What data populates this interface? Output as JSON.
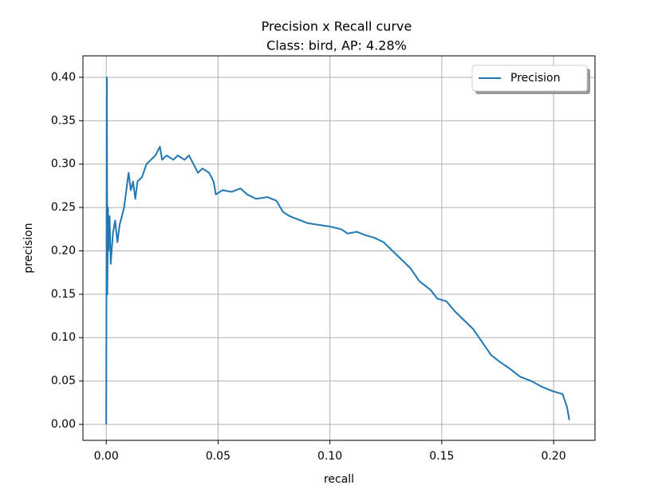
{
  "chart_data": {
    "type": "line",
    "title": "Precision x Recall curve",
    "subtitle": "Class: bird, AP: 4.28%",
    "x_label": "recall",
    "y_label": "precision",
    "grid": true,
    "legend": "upper right",
    "xlim": [
      -0.0104,
      0.2185
    ],
    "ylim": [
      -0.0184,
      0.4248
    ],
    "xticks": [
      {
        "value": 0,
        "label": "0.00"
      },
      {
        "value": 0.05,
        "label": "0.05"
      },
      {
        "value": 0.1,
        "label": "0.10"
      },
      {
        "value": 0.15,
        "label": "0.15"
      },
      {
        "value": 0.2,
        "label": "0.20"
      }
    ],
    "yticks": [
      {
        "value": 0,
        "label": "0.00"
      },
      {
        "value": 0.05,
        "label": "0.05"
      },
      {
        "value": 0.1,
        "label": "0.10"
      },
      {
        "value": 0.15,
        "label": "0.15"
      },
      {
        "value": 0.2,
        "label": "0.20"
      },
      {
        "value": 0.25,
        "label": "0.25"
      },
      {
        "value": 0.3,
        "label": "0.30"
      },
      {
        "value": 0.35,
        "label": "0.35"
      },
      {
        "value": 0.4,
        "label": "0.40"
      }
    ],
    "x": [
      0,
      0.0003,
      0.0005,
      0.0008,
      0.001,
      0.0015,
      0.002,
      0.003,
      0.004,
      0.005,
      0.006,
      0.007,
      0.008,
      0.009,
      0.01,
      0.011,
      0.012,
      0.013,
      0.014,
      0.016,
      0.018,
      0.02,
      0.022,
      0.024,
      0.025,
      0.027,
      0.03,
      0.032,
      0.035,
      0.037,
      0.039,
      0.041,
      0.043,
      0.046,
      0.048,
      0.049,
      0.052,
      0.056,
      0.06,
      0.063,
      0.067,
      0.072,
      0.076,
      0.079,
      0.082,
      0.086,
      0.09,
      0.095,
      0.1,
      0.105,
      0.108,
      0.112,
      0.116,
      0.12,
      0.124,
      0.128,
      0.132,
      0.136,
      0.14,
      0.145,
      0.148,
      0.152,
      0.156,
      0.16,
      0.164,
      0.168,
      0.172,
      0.176,
      0.18,
      0.185,
      0.19,
      0.195,
      0.2,
      0.204,
      0.206,
      0.207
    ],
    "series": [
      {
        "name": "Precision",
        "color": "#1f77b4",
        "values": [
          0,
          0.4,
          0.15,
          0.25,
          0.2,
          0.24,
          0.185,
          0.22,
          0.235,
          0.21,
          0.23,
          0.24,
          0.25,
          0.27,
          0.29,
          0.27,
          0.28,
          0.26,
          0.28,
          0.285,
          0.3,
          0.305,
          0.31,
          0.32,
          0.305,
          0.31,
          0.305,
          0.31,
          0.305,
          0.31,
          0.3,
          0.29,
          0.295,
          0.29,
          0.28,
          0.265,
          0.27,
          0.268,
          0.272,
          0.265,
          0.26,
          0.262,
          0.258,
          0.245,
          0.24,
          0.236,
          0.232,
          0.23,
          0.228,
          0.225,
          0.22,
          0.222,
          0.218,
          0.215,
          0.21,
          0.2,
          0.19,
          0.18,
          0.165,
          0.155,
          0.145,
          0.142,
          0.13,
          0.12,
          0.11,
          0.095,
          0.08,
          0.072,
          0.065,
          0.055,
          0.05,
          0.043,
          0.038,
          0.035,
          0.02,
          0.005
        ]
      }
    ]
  }
}
